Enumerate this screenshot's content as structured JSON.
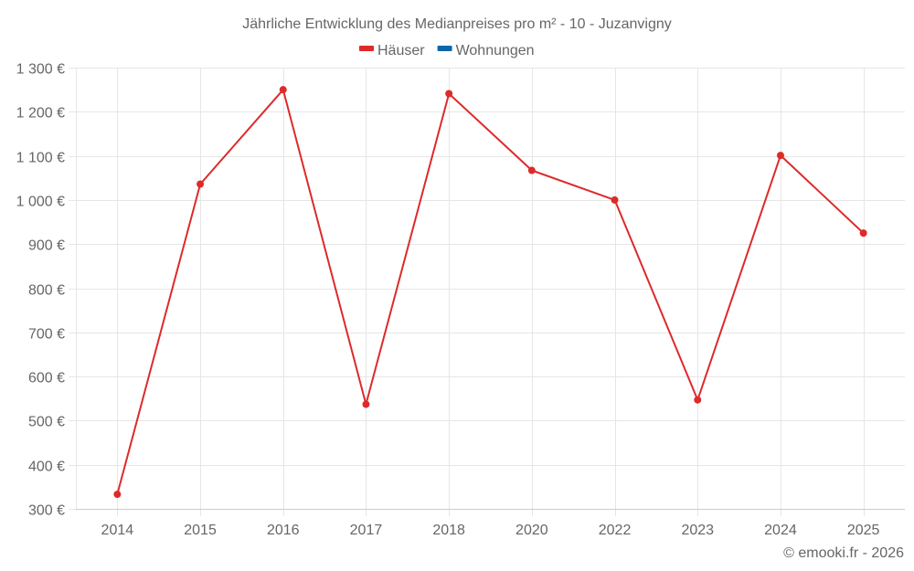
{
  "chart_data": {
    "type": "line",
    "title": "Jährliche Entwicklung des Medianpreises pro m² - 10 - Juzanvigny",
    "xlabel": "",
    "ylabel": "",
    "categories": [
      "2014",
      "2015",
      "2016",
      "2017",
      "2018",
      "2020",
      "2022",
      "2023",
      "2024",
      "2025"
    ],
    "series": [
      {
        "name": "Häuser",
        "color": "#dd2a2a",
        "values": [
          333,
          1036,
          1250,
          537,
          1241,
          1067,
          1000,
          547,
          1101,
          925
        ]
      },
      {
        "name": "Wohnungen",
        "color": "#0b67a8",
        "values": []
      }
    ],
    "ylim": [
      300,
      1300
    ],
    "yticks": [
      300,
      400,
      500,
      600,
      700,
      800,
      900,
      1000,
      1100,
      1200,
      1300
    ],
    "ytick_labels": [
      "300 €",
      "400 €",
      "500 €",
      "600 €",
      "700 €",
      "800 €",
      "900 €",
      "1 000 €",
      "1 100 €",
      "1 200 €",
      "1 300 €"
    ],
    "grid": true,
    "legend_position": "top"
  },
  "credit": "© emooki.fr - 2026"
}
